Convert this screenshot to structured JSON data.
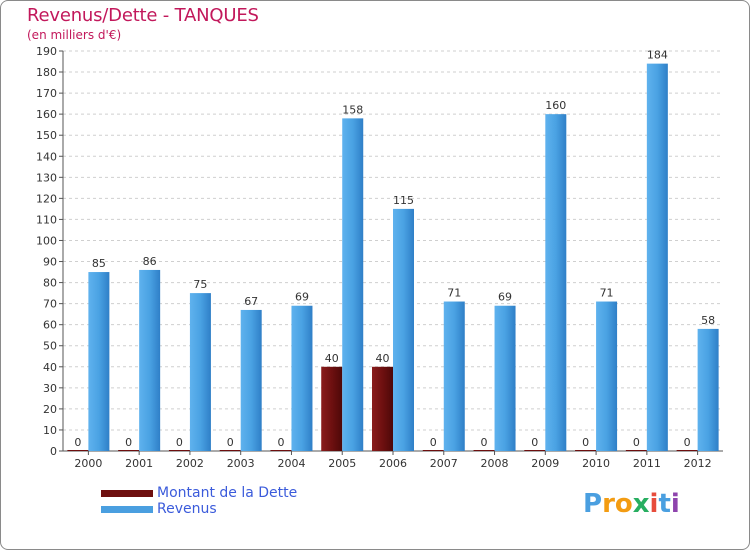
{
  "header": {
    "title": "Revenus/Dette - TANQUES",
    "subtitle": "(en milliers d'€)"
  },
  "chart_data": {
    "type": "bar",
    "title": "Revenus/Dette - TANQUES",
    "ylabel": "(en milliers d'€)",
    "xlabel": "",
    "ylim": [
      0,
      190
    ],
    "ytick_step": 10,
    "grid": true,
    "categories": [
      "2000",
      "2001",
      "2002",
      "2003",
      "2004",
      "2005",
      "2006",
      "2007",
      "2008",
      "2009",
      "2010",
      "2011",
      "2012"
    ],
    "series": [
      {
        "name": "Montant de la Dette",
        "color": "#6e0f0f",
        "values": [
          0,
          0,
          0,
          0,
          0,
          40,
          40,
          0,
          0,
          0,
          0,
          0,
          0
        ]
      },
      {
        "name": "Revenus",
        "color": "#4a9fe0",
        "values": [
          85,
          86,
          75,
          67,
          69,
          158,
          115,
          71,
          69,
          160,
          71,
          184,
          58
        ]
      }
    ]
  },
  "legend": {
    "items": [
      {
        "label": "Montant de la Dette",
        "color": "#6e0f0f"
      },
      {
        "label": "Revenus",
        "color": "#4a9fe0"
      }
    ]
  },
  "logo": {
    "letters": [
      "P",
      "r",
      "o",
      "x",
      "i",
      "t",
      "i"
    ],
    "colors": [
      "#4a9fe0",
      "#f39c12",
      "#f39c12",
      "#27ae60",
      "#e74c3c",
      "#4a9fe0",
      "#8e44ad"
    ]
  }
}
